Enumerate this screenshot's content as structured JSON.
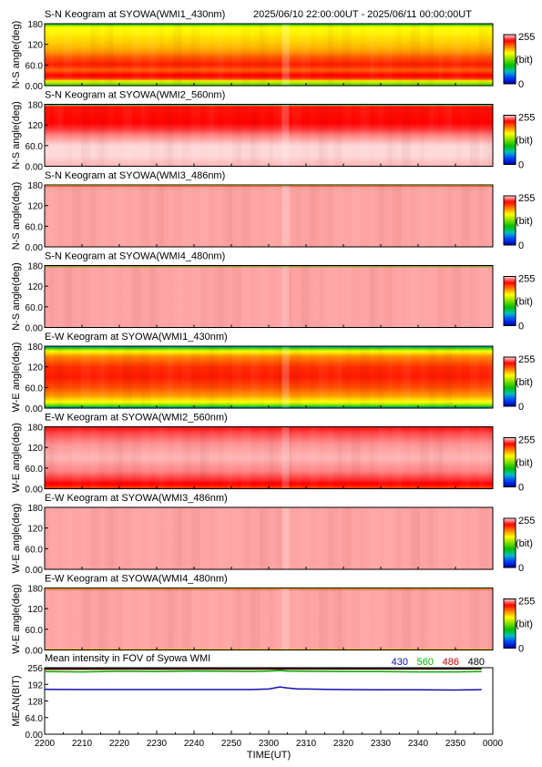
{
  "header": {
    "date_range": "2025/06/10 22:00:00UT - 2025/06/11 00:00:00UT"
  },
  "colorbar": {
    "max_label": "255",
    "unit_label": "(bit)",
    "min_label": "0",
    "colors": [
      "#0000a0",
      "#0040ff",
      "#00c0c0",
      "#00c000",
      "#80e000",
      "#ffff00",
      "#ff8000",
      "#ff0000",
      "#ffd8d8"
    ]
  },
  "chart_data": [
    {
      "type": "heatmap",
      "title": "S-N Keogram at SYOWA(WMI1_430nm)",
      "ylabel": "N-S angle(deg)",
      "yticks": [
        "180",
        "120",
        "60.0",
        "0.00"
      ],
      "ylim": [
        0,
        180
      ],
      "xlim": [
        "2200",
        "0000"
      ],
      "profile": [
        {
          "angle": 0,
          "level": 0.45
        },
        {
          "angle": 10,
          "level": 0.55
        },
        {
          "angle": 20,
          "level": 0.82
        },
        {
          "angle": 30,
          "level": 0.88
        },
        {
          "angle": 45,
          "level": 0.78
        },
        {
          "angle": 60,
          "level": 0.85
        },
        {
          "angle": 80,
          "level": 0.8
        },
        {
          "angle": 100,
          "level": 0.72
        },
        {
          "angle": 120,
          "level": 0.68
        },
        {
          "angle": 150,
          "level": 0.64
        },
        {
          "angle": 170,
          "level": 0.62
        },
        {
          "angle": 180,
          "level": 0.35
        }
      ]
    },
    {
      "type": "heatmap",
      "title": "S-N Keogram at SYOWA(WMI2_560nm)",
      "ylabel": "N-S angle(deg)",
      "yticks": [
        "180",
        "120",
        "60.0",
        "0.00"
      ],
      "ylim": [
        0,
        180
      ],
      "xlim": [
        "2200",
        "0000"
      ],
      "profile": [
        {
          "angle": 0,
          "level": 0.98
        },
        {
          "angle": 30,
          "level": 1.0
        },
        {
          "angle": 60,
          "level": 1.0
        },
        {
          "angle": 90,
          "level": 0.95
        },
        {
          "angle": 110,
          "level": 0.9
        },
        {
          "angle": 130,
          "level": 0.87
        },
        {
          "angle": 160,
          "level": 0.86
        },
        {
          "angle": 175,
          "level": 0.86
        },
        {
          "angle": 180,
          "level": 0.0
        }
      ]
    },
    {
      "type": "heatmap",
      "title": "S-N Keogram at SYOWA(WMI3_486nm)",
      "ylabel": "N-S angle(deg)",
      "yticks": [
        "180",
        "120",
        "60.0",
        "0.00"
      ],
      "ylim": [
        0,
        180
      ],
      "xlim": [
        "2200",
        "0000"
      ],
      "profile": [
        {
          "angle": 0,
          "level": 0.97
        },
        {
          "angle": 175,
          "level": 0.97
        },
        {
          "angle": 180,
          "level": 0.45
        }
      ]
    },
    {
      "type": "heatmap",
      "title": "S-N Keogram at SYOWA(WMI4_480nm)",
      "ylabel": "N-S angle(deg)",
      "yticks": [
        "180",
        "120",
        "60.0",
        "0.00"
      ],
      "ylim": [
        0,
        180
      ],
      "xlim": [
        "2200",
        "0000"
      ],
      "profile": [
        {
          "angle": 0,
          "level": 0.97
        },
        {
          "angle": 174,
          "level": 0.97
        },
        {
          "angle": 180,
          "level": 0.0
        }
      ]
    },
    {
      "type": "heatmap",
      "title": "E-W Keogram at SYOWA(WMI1_430nm)",
      "ylabel": "W-E angle(deg)",
      "yticks": [
        "180",
        "120",
        "60.0",
        "0.00"
      ],
      "ylim": [
        0,
        180
      ],
      "xlim": [
        "2200",
        "0000"
      ],
      "profile": [
        {
          "angle": 0,
          "level": 0.12
        },
        {
          "angle": 6,
          "level": 0.45
        },
        {
          "angle": 15,
          "level": 0.6
        },
        {
          "angle": 35,
          "level": 0.72
        },
        {
          "angle": 60,
          "level": 0.8
        },
        {
          "angle": 90,
          "level": 0.85
        },
        {
          "angle": 120,
          "level": 0.83
        },
        {
          "angle": 150,
          "level": 0.74
        },
        {
          "angle": 165,
          "level": 0.62
        },
        {
          "angle": 174,
          "level": 0.45
        },
        {
          "angle": 180,
          "level": 0.15
        }
      ]
    },
    {
      "type": "heatmap",
      "title": "E-W Keogram at SYOWA(WMI2_560nm)",
      "ylabel": "W-E angle(deg)",
      "yticks": [
        "180",
        "120",
        "60.0",
        "0.00"
      ],
      "ylim": [
        0,
        180
      ],
      "xlim": [
        "2200",
        "0000"
      ],
      "profile": [
        {
          "angle": 0,
          "level": 0.8
        },
        {
          "angle": 10,
          "level": 0.86
        },
        {
          "angle": 25,
          "level": 0.9
        },
        {
          "angle": 50,
          "level": 0.95
        },
        {
          "angle": 90,
          "level": 0.98
        },
        {
          "angle": 130,
          "level": 0.96
        },
        {
          "angle": 160,
          "level": 0.92
        },
        {
          "angle": 180,
          "level": 0.88
        }
      ]
    },
    {
      "type": "heatmap",
      "title": "E-W Keogram at SYOWA(WMI3_486nm)",
      "ylabel": "W-E angle(deg)",
      "yticks": [
        "180",
        "120",
        "60.0",
        "0.00"
      ],
      "ylim": [
        0,
        180
      ],
      "xlim": [
        "2200",
        "0000"
      ],
      "profile": [
        {
          "angle": 0,
          "level": 0.97
        },
        {
          "angle": 180,
          "level": 0.97
        }
      ]
    },
    {
      "type": "heatmap",
      "title": "E-W Keogram at SYOWA(WMI4_480nm)",
      "ylabel": "W-E angle(deg)",
      "yticks": [
        "180",
        "120",
        "60.0",
        "0.00"
      ],
      "ylim": [
        0,
        180
      ],
      "xlim": [
        "2200",
        "0000"
      ],
      "profile": [
        {
          "angle": 0,
          "level": 0.5
        },
        {
          "angle": 4,
          "level": 0.97
        },
        {
          "angle": 175,
          "level": 0.97
        },
        {
          "angle": 180,
          "level": 0.5
        }
      ]
    },
    {
      "type": "line",
      "title": "Mean intensity in FOV of Syowa WMI",
      "xlabel": "TIME(UT)",
      "ylabel": "MEAN(BIT)",
      "yticks": [
        "256",
        "192",
        "128",
        "64.0",
        "0.00"
      ],
      "ylim": [
        0,
        256
      ],
      "xticks": [
        "2200",
        "2210",
        "2220",
        "2230",
        "2240",
        "2250",
        "2300",
        "2310",
        "2320",
        "2330",
        "2340",
        "2350",
        "0000"
      ],
      "series": [
        {
          "name": "430",
          "color": "#1010b0",
          "x": [
            0,
            10,
            20,
            30,
            40,
            50,
            55,
            60,
            63,
            65,
            68,
            70,
            75,
            80,
            90,
            100,
            110,
            115,
            117
          ],
          "y": [
            173,
            172,
            172,
            172,
            172,
            172,
            172,
            174,
            182,
            178,
            174,
            174,
            173,
            172,
            171,
            171,
            170,
            171,
            172
          ]
        },
        {
          "name": "560",
          "color": "#00b000",
          "x": [
            0,
            10,
            20,
            30,
            40,
            50,
            55,
            60,
            63,
            65,
            70,
            80,
            90,
            100,
            110,
            117
          ],
          "y": [
            241,
            240,
            242,
            241,
            243,
            242,
            241,
            243,
            245,
            243,
            242,
            241,
            241,
            240,
            240,
            241
          ]
        },
        {
          "name": "486",
          "color": "#c00000",
          "x": [
            0,
            117
          ],
          "y": [
            250,
            251
          ]
        },
        {
          "name": "480",
          "color": "#000000",
          "x": [
            0,
            117
          ],
          "y": [
            253,
            253
          ]
        }
      ]
    }
  ]
}
